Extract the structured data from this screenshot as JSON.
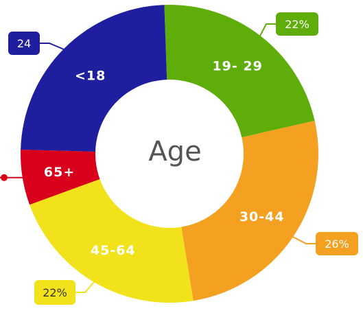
{
  "chart_data": {
    "type": "pie",
    "variant": "donut",
    "center_label": "Age",
    "categories": [
      "19-29",
      "30-44",
      "45-64",
      "65+",
      "<18"
    ],
    "values": [
      22,
      26,
      22,
      6,
      24
    ],
    "colors": [
      "#5fad0a",
      "#f4a020",
      "#f2e21c",
      "#d8001a",
      "#1e1e9e"
    ],
    "label_colors": [
      "#ffffff",
      "#ffffff",
      "#ffffff",
      "#ffffff",
      "#ffffff"
    ],
    "callouts": [
      {
        "slice": 0,
        "text": "22%",
        "bg": "#5fad0a",
        "color": "#ffffff"
      },
      {
        "slice": 1,
        "text": "26%",
        "bg": "#f4a020",
        "color": "#ffffff"
      },
      {
        "slice": 2,
        "text": "22%",
        "bg": "#f2e21c",
        "color": "#333333"
      },
      {
        "slice": 4,
        "text": "24",
        "bg": "#1e1e9e",
        "color": "#ffffff"
      }
    ],
    "slice_display": [
      "19- 29",
      "30-44",
      "45-64",
      "65+",
      "<18"
    ]
  }
}
